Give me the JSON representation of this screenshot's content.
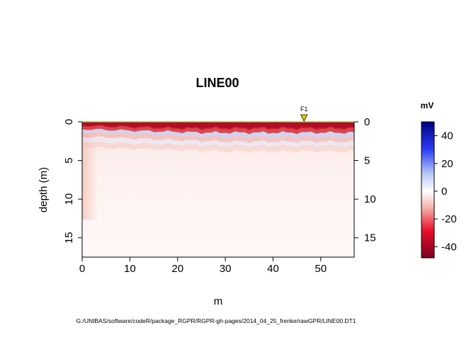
{
  "chart_data": {
    "type": "heatmap",
    "title": "LINE00",
    "xlabel": "m",
    "ylabel": "depth (m)",
    "xlim": [
      0,
      57
    ],
    "ylim": [
      17.5,
      0
    ],
    "x_ticks": [
      0,
      10,
      20,
      30,
      40,
      50
    ],
    "y_ticks": [
      0,
      5,
      10,
      15
    ],
    "y_ticks_right": [
      0,
      5,
      10,
      15
    ],
    "marker": {
      "label": "F1",
      "x": 46.5,
      "color": "#f5c400"
    },
    "surface_line_color": "#7fd43a",
    "colorbar": {
      "title": "mV",
      "range": [
        -48,
        50
      ],
      "ticks": [
        40,
        20,
        0,
        -20,
        -40
      ],
      "colors": [
        "#7a0020",
        "#e8102a",
        "#f7b3ad",
        "#ffffff",
        "#b6c6f5",
        "#2a3bf5",
        "#000080"
      ]
    },
    "source_file": "G:/UNIBAS/software/codeR/package_RGPR/RGPR-gh-pages/2014_04_25_frenke/rawGPR/LINE00.DT1"
  }
}
